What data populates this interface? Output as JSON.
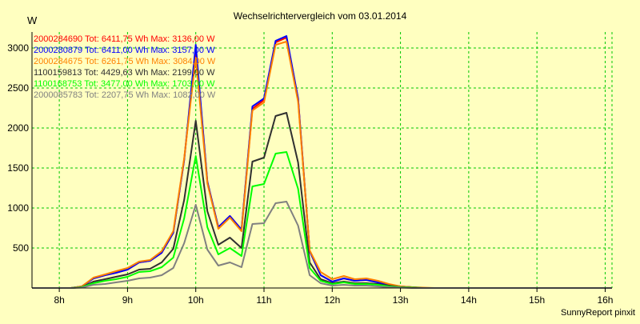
{
  "colors": {
    "background": "#ffffc0",
    "grid": "#00c800",
    "axis": "#000000"
  },
  "chart_data": {
    "type": "line",
    "title": "Wechselrichtervergleich vom 03.01.2014",
    "ylabel": "W",
    "xlabel": "",
    "footer": "SunnyReport pinxit",
    "grid": true,
    "legend_position": "top-left",
    "xlim": [
      7.6,
      16.1
    ],
    "ylim": [
      0,
      3200
    ],
    "x_ticks": [
      8,
      9,
      10,
      11,
      12,
      13,
      14,
      15,
      16
    ],
    "x_tick_labels": [
      "8h",
      "9h",
      "10h",
      "11h",
      "12h",
      "13h",
      "14h",
      "15h",
      "16h"
    ],
    "y_ticks": [
      500,
      1000,
      1500,
      2000,
      2500,
      3000
    ],
    "y_tick_labels": [
      "500",
      "1000",
      "1500",
      "2000",
      "2500",
      "3000"
    ],
    "x": [
      7.6,
      8.0,
      8.17,
      8.33,
      8.5,
      8.67,
      8.83,
      9.0,
      9.17,
      9.33,
      9.5,
      9.67,
      9.83,
      10.0,
      10.17,
      10.33,
      10.5,
      10.67,
      10.83,
      11.0,
      11.17,
      11.33,
      11.5,
      11.67,
      11.83,
      12.0,
      12.17,
      12.33,
      12.5,
      12.67,
      12.83,
      13.0,
      13.17,
      13.33,
      13.5,
      13.67,
      13.83,
      14.0,
      14.17,
      14.33,
      14.5,
      14.67,
      14.83,
      15.0,
      16.1
    ],
    "series": [
      {
        "name": "2000284690",
        "legend": "2000284690 Tot: 6411,75 Wh Max: 3136,00 W",
        "color": "#ff0000",
        "values": [
          0,
          0,
          0,
          20,
          120,
          160,
          190,
          230,
          320,
          340,
          440,
          690,
          1600,
          2980,
          1330,
          760,
          900,
          730,
          2240,
          2350,
          3070,
          3130,
          2370,
          460,
          160,
          80,
          120,
          90,
          100,
          70,
          40,
          20,
          10,
          0,
          0,
          0,
          0,
          0,
          0,
          0,
          0,
          0,
          0,
          0,
          0
        ]
      },
      {
        "name": "2000280879",
        "legend": "2000280879 Tot: 6411,00 Wh Max: 3157,00 W",
        "color": "#0000ff",
        "values": [
          0,
          0,
          0,
          20,
          120,
          160,
          190,
          230,
          320,
          340,
          440,
          690,
          1600,
          3040,
          1330,
          760,
          900,
          730,
          2270,
          2370,
          3090,
          3150,
          2370,
          460,
          160,
          80,
          120,
          90,
          100,
          70,
          40,
          20,
          10,
          0,
          0,
          0,
          0,
          0,
          0,
          0,
          0,
          0,
          0,
          0,
          0
        ]
      },
      {
        "name": "2000284675",
        "legend": "2000284675 Tot: 6261,75 Wh Max: 3084,00 W",
        "color": "#ff8000",
        "values": [
          0,
          0,
          0,
          20,
          130,
          170,
          210,
          250,
          330,
          350,
          460,
          710,
          1620,
          2880,
          1310,
          740,
          880,
          710,
          2220,
          2320,
          3040,
          3080,
          2330,
          470,
          200,
          110,
          150,
          110,
          120,
          90,
          50,
          20,
          10,
          5,
          0,
          0,
          0,
          0,
          0,
          0,
          0,
          0,
          0,
          0,
          0
        ]
      },
      {
        "name": "1100159813",
        "legend": "1100159813 Tot: 4429,63 Wh Max: 2199,00 W",
        "color": "#303030",
        "values": [
          0,
          0,
          0,
          10,
          80,
          110,
          140,
          170,
          230,
          240,
          320,
          490,
          1100,
          2090,
          960,
          540,
          630,
          500,
          1580,
          1630,
          2150,
          2190,
          1570,
          320,
          110,
          60,
          80,
          60,
          60,
          50,
          30,
          10,
          5,
          0,
          0,
          0,
          0,
          0,
          0,
          0,
          0,
          0,
          0,
          0,
          0
        ]
      },
      {
        "name": "1100168753",
        "legend": "1100168753 Tot: 3477,00 Wh Max: 1703,00 W",
        "color": "#00ff00",
        "values": [
          0,
          0,
          0,
          10,
          60,
          90,
          110,
          140,
          200,
          210,
          260,
          380,
          870,
          1650,
          760,
          420,
          500,
          400,
          1270,
          1300,
          1680,
          1700,
          1240,
          250,
          90,
          50,
          70,
          50,
          50,
          40,
          20,
          10,
          5,
          0,
          0,
          0,
          0,
          0,
          0,
          0,
          0,
          0,
          0,
          0,
          0
        ]
      },
      {
        "name": "2000085783",
        "legend": "2000085783 Tot: 2207,75 Wh Max: 1082,00 W",
        "color": "#808080",
        "values": [
          0,
          0,
          0,
          5,
          40,
          50,
          70,
          90,
          120,
          130,
          160,
          250,
          560,
          1040,
          480,
          280,
          320,
          260,
          800,
          810,
          1060,
          1080,
          780,
          160,
          60,
          30,
          40,
          30,
          30,
          20,
          10,
          5,
          0,
          0,
          0,
          0,
          0,
          0,
          0,
          0,
          0,
          0,
          0,
          0,
          0
        ]
      }
    ]
  }
}
